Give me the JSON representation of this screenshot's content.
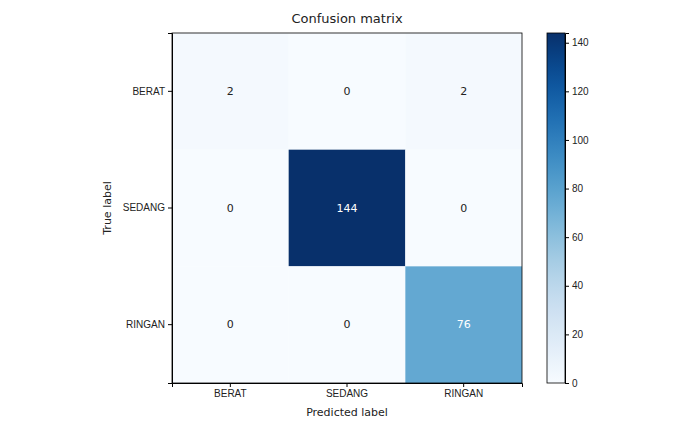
{
  "chart_data": {
    "type": "heatmap",
    "title": "Confusion matrix",
    "x_label": "Predicted label",
    "y_label": "True label",
    "x_categories": [
      "BERAT",
      "SEDANG",
      "RINGAN"
    ],
    "y_categories": [
      "BERAT",
      "SEDANG",
      "RINGAN"
    ],
    "cells": [
      [
        2,
        0,
        2
      ],
      [
        0,
        144,
        0
      ],
      [
        0,
        0,
        76
      ]
    ],
    "color": "Blues",
    "color_range": [
      0,
      144
    ],
    "color_ticks": [
      0,
      20,
      40,
      60,
      80,
      100,
      120,
      140
    ],
    "data_labels": true
  }
}
